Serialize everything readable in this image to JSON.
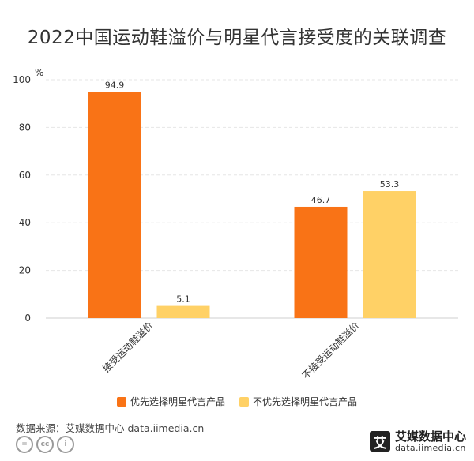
{
  "title": "2022中国运动鞋溢价与明星代言接受度的关联调查",
  "chart_data": {
    "type": "bar",
    "title": "2022中国运动鞋溢价与明星代言接受度的关联调查",
    "ylabel": "%",
    "ylim": [
      0,
      100
    ],
    "yticks": [
      0,
      20,
      40,
      60,
      80,
      100
    ],
    "categories": [
      "接受运动鞋溢价",
      "不接受运动鞋溢价"
    ],
    "series": [
      {
        "name": "优先选择明星代言产品",
        "values": [
          94.9,
          46.7
        ],
        "color": "#F97316"
      },
      {
        "name": "不优先选择明星代言产品",
        "values": [
          5.1,
          53.3
        ],
        "color": "#FFD166"
      }
    ],
    "grid": true,
    "legend": "bottom"
  },
  "source": "数据来源：艾媒数据中心 data.iimedia.cn",
  "logo": {
    "name": "艾媒数据中心",
    "url": "data.iimedia.cn",
    "mark": "艾"
  },
  "cc_icons": [
    "=",
    "cc",
    "i"
  ]
}
